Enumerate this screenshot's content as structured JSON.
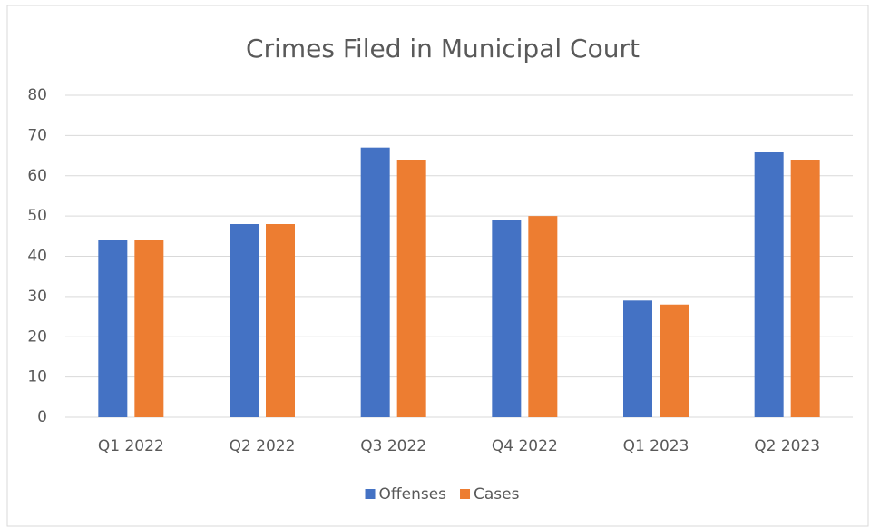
{
  "chart_data": {
    "type": "bar",
    "title": "Crimes Filed in Municipal Court",
    "categories": [
      "Q1 2022",
      "Q2 2022",
      "Q3 2022",
      "Q4 2022",
      "Q1 2023",
      "Q2 2023"
    ],
    "series": [
      {
        "name": "Offenses",
        "color": "#4472c4",
        "values": [
          44,
          48,
          67,
          49,
          29,
          66
        ]
      },
      {
        "name": "Cases",
        "color": "#ed7d31",
        "values": [
          44,
          48,
          64,
          50,
          28,
          64
        ]
      }
    ],
    "ylim": [
      0,
      80
    ],
    "yticks": [
      0,
      10,
      20,
      30,
      40,
      50,
      60,
      70,
      80
    ],
    "grid": true,
    "legend": "bottom"
  }
}
